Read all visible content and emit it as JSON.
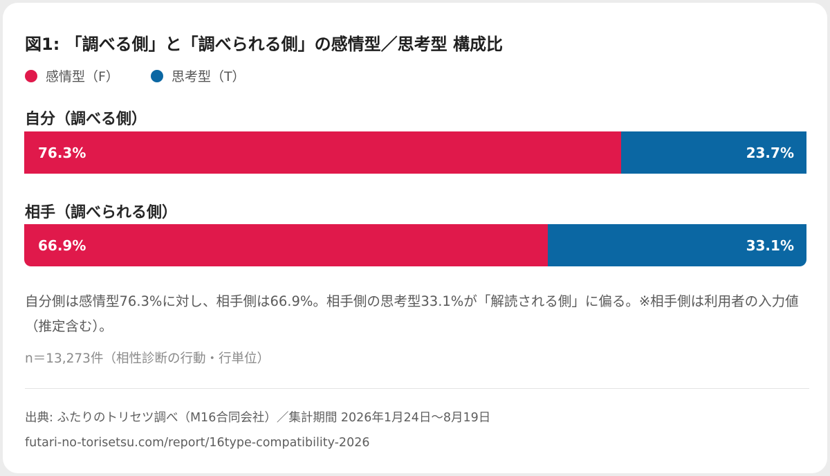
{
  "chart_data": {
    "type": "bar",
    "stacked": true,
    "orientation": "horizontal",
    "normalized": "percent",
    "title": "図1: 「調べる側」と「調べられる側」の感情型／思考型 構成比",
    "categories": [
      "自分（調べる側）",
      "相手（調べられる側）"
    ],
    "series": [
      {
        "name": "感情型（F）",
        "color": "#e0194b",
        "values": [
          76.3,
          66.9
        ],
        "labels": [
          "76.3%",
          "66.9%"
        ]
      },
      {
        "name": "思考型（T）",
        "color": "#0b67a3",
        "values": [
          23.7,
          33.1
        ],
        "labels": [
          "23.7%",
          "33.1%"
        ]
      }
    ],
    "xlim": [
      0,
      100
    ],
    "legend": "top-left",
    "grid": false
  },
  "note": "自分側は感情型76.3%に対し、相手側は66.9%。相手側の思考型33.1%が「解読される側」に偏る。※相手側は利用者の入力値（推定含む）。",
  "sample": "n＝13,273件（相性診断の行動・行単位）",
  "source": "出典: ふたりのトリセツ調べ（M16合同会社）／集計期間 2026年1月24日～8月19日",
  "url": "futari-no-torisetsu.com/report/16type-compatibility-2026"
}
